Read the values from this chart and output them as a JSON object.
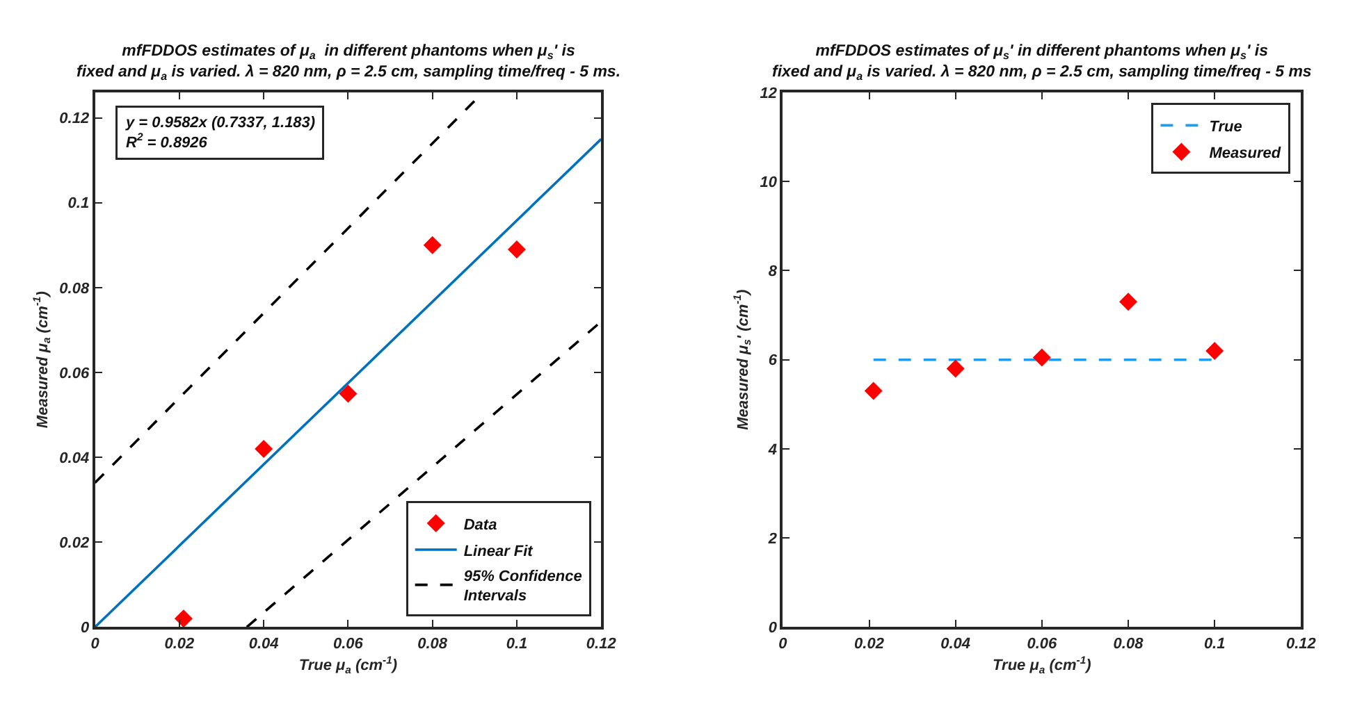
{
  "chart_data": [
    {
      "type": "scatter",
      "title": "mfFDDOS estimates of μ$_{a}$  in different phantoms when μ$_{s}$' is fixed and μ$_{a}$ is varied. λ = 820 nm, ρ = 2.5 cm, sampling time/freq - 5 ms.",
      "xlabel": "True μ$_{a}$ (cm$^{-1}$)",
      "ylabel": "Measured μ$_{a}$ (cm$^{-1}$)",
      "xlim": [
        0,
        0.12
      ],
      "xticks": [
        0,
        0.02,
        0.04,
        0.06,
        0.08,
        0.1,
        0.12
      ],
      "ylim": [
        0,
        0.126
      ],
      "yticks": [
        0,
        0.02,
        0.04,
        0.06,
        0.08,
        0.1,
        0.12
      ],
      "legend": "bottom right",
      "annotations": [
        "y = 0.9582x (0.7337, 1.183)",
        "R$^{2}$ = 0.8926"
      ],
      "series": [
        {
          "name": "Data",
          "type": "scatter",
          "marker": "diamond",
          "color": "#ff0000",
          "x": [
            0.021,
            0.04,
            0.06,
            0.08,
            0.1
          ],
          "values": [
            0.002,
            0.042,
            0.055,
            0.09,
            0.089
          ]
        },
        {
          "name": "Linear Fit",
          "type": "line",
          "marker": "none",
          "line_style": "solid",
          "color": "#0072bd",
          "x": [
            0,
            0.12
          ],
          "values": [
            0,
            0.115
          ]
        },
        {
          "name": "95% Confidence Intervals",
          "type": "line",
          "marker": "none",
          "line_style": "dashed",
          "color": "#000000",
          "x": [
            0,
            0.092,
            null,
            0.036,
            0.12
          ],
          "values": [
            0.034,
            0.126,
            null,
            0,
            0.072
          ]
        }
      ]
    },
    {
      "type": "scatter",
      "title": "mfFDDOS estimates of μ$_{s}$' in different phantoms when μ$_{s}$' is fixed and μ$_{a}$ is varied. λ = 820 nm, ρ = 2.5 cm, sampling time/freq - 5 ms",
      "xlabel": "True μ$_{a}$ (cm$^{-1}$)",
      "ylabel": "Measured μ$_{s}$' (cm$^{-1}$)",
      "xlim": [
        0,
        0.12
      ],
      "xticks": [
        0,
        0.02,
        0.04,
        0.06,
        0.08,
        0.1,
        0.12
      ],
      "ylim": [
        0,
        12
      ],
      "yticks": [
        0,
        2,
        4,
        6,
        8,
        10,
        12
      ],
      "legend": "top right",
      "series": [
        {
          "name": "True",
          "type": "line",
          "marker": "none",
          "line_style": "dashed",
          "color": "#1e9cf0",
          "x": [
            0.021,
            0.1
          ],
          "values": [
            6,
            6
          ]
        },
        {
          "name": "Measured",
          "type": "scatter",
          "marker": "diamond",
          "color": "#ff0000",
          "x": [
            0.021,
            0.04,
            0.06,
            0.08,
            0.1
          ],
          "values": [
            5.3,
            5.8,
            6.05,
            7.3,
            6.2
          ]
        }
      ]
    }
  ]
}
